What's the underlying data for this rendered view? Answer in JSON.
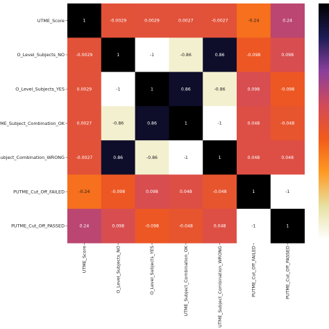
{
  "chart_data": {
    "type": "heatmap",
    "title": "",
    "xlabel": "",
    "ylabel": "",
    "row_labels": [
      "UTME_Score",
      "O_Level_Subjects_NO",
      "O_Level_Subjects_YES",
      "UTME_Subject_Combination_OK",
      "UTME_Subject_Combination_WRONG",
      "PUTME_Cut_Off_FAILED",
      "PUTME_Cut_Off_PASSED"
    ],
    "col_labels": [
      "UTME_Score",
      "O_Level_Subjects_NO",
      "O_Level_Subjects_YES",
      "UTME_Subject_Combination_OK",
      "UTME_Subject_Combination_WRONG",
      "PUTME_Cut_Off_FAILED",
      "PUTME_Cut_Off_PASSED"
    ],
    "values": [
      [
        1,
        -0.0029,
        0.0029,
        0.0027,
        -0.0027,
        -0.24,
        0.24
      ],
      [
        -0.0029,
        1,
        -1,
        -0.86,
        0.86,
        -0.098,
        0.098
      ],
      [
        0.0029,
        -1,
        1,
        0.86,
        -0.86,
        0.098,
        -0.098
      ],
      [
        0.0027,
        -0.86,
        0.86,
        1,
        -1,
        0.048,
        -0.048
      ],
      [
        -0.0027,
        0.86,
        -0.86,
        -1,
        1,
        0.048,
        0.048
      ],
      [
        -0.24,
        -0.098,
        0.098,
        0.048,
        -0.048,
        1,
        -1
      ],
      [
        0.24,
        0.098,
        -0.098,
        -0.048,
        0.048,
        -1,
        1
      ]
    ],
    "cell_labels": [
      [
        "1",
        "-0.0029",
        "0.0029",
        "0.0027",
        "-0.0027",
        "-0.24",
        "0.24"
      ],
      [
        "-0.0029",
        "1",
        "-1",
        "-0.86",
        "0.86",
        "-0.098",
        "0.098"
      ],
      [
        "0.0029",
        "-1",
        "1",
        "0.86",
        "-0.86",
        "0.098",
        "-0.098"
      ],
      [
        "0.0027",
        "-0.86",
        "0.86",
        "1",
        "-1",
        "0.048",
        "-0.048"
      ],
      [
        "-0.0027",
        "0.86",
        "-0.86",
        "-1",
        "1",
        "0.048",
        "0.048"
      ],
      [
        "-0.24",
        "-0.098",
        "0.098",
        "0.048",
        "-0.048",
        "1",
        "-1"
      ],
      [
        "0.24",
        "0.098",
        "-0.098",
        "-0.048",
        "0.048",
        "-1",
        "1"
      ]
    ],
    "value_range": [
      -1,
      1
    ],
    "colormap": "CMRmap",
    "colormap_stops": [
      "#ffffff",
      "#e6e0a0",
      "#ff9a22",
      "#f25a1a",
      "#d24a5a",
      "#8a3f9e",
      "#1c1c55",
      "#000000"
    ],
    "colorbar": true,
    "grid": false
  }
}
